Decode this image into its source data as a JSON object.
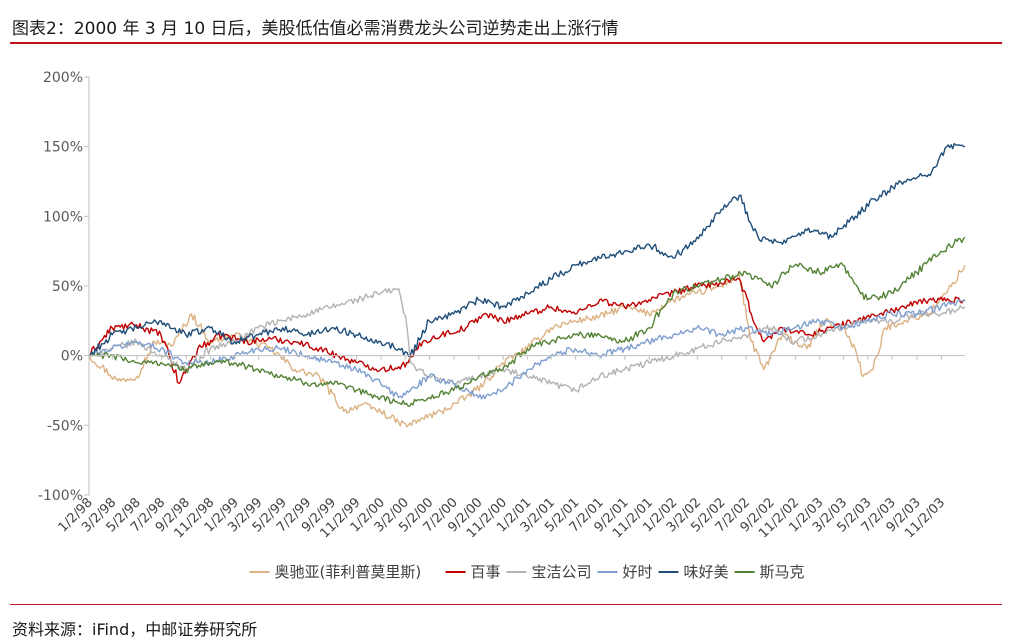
{
  "title": "图表2：2000 年 3 月 10 日后，美股低估值必需消费龙头公司逆势走出上涨行情",
  "source": "资料来源：iFind，中邮证券研究所",
  "chart_data": {
    "type": "line",
    "title": "",
    "xlabel": "",
    "ylabel": "",
    "ylim": [
      -100,
      200
    ],
    "yticks": [
      -100,
      -50,
      0,
      50,
      100,
      150,
      200
    ],
    "ytick_labels": [
      "-100%",
      "-50%",
      "0%",
      "50%",
      "100%",
      "150%",
      "200%"
    ],
    "xlim": [
      "1998-01-02",
      "2003-12-31"
    ],
    "xtick_labels": [
      "1/2/98",
      "3/2/98",
      "5/2/98",
      "7/2/98",
      "9/2/98",
      "11/2/98",
      "1/2/99",
      "3/2/99",
      "5/2/99",
      "7/2/99",
      "9/2/99",
      "11/2/99",
      "1/2/00",
      "3/2/00",
      "5/2/00",
      "7/2/00",
      "9/2/00",
      "11/2/00",
      "1/2/01",
      "3/2/01",
      "5/2/01",
      "7/2/01",
      "9/2/01",
      "11/2/01",
      "1/2/02",
      "3/2/02",
      "5/2/02",
      "7/2/02",
      "9/2/02",
      "11/2/02",
      "1/2/03",
      "3/2/03",
      "5/2/03",
      "7/2/03",
      "9/2/03",
      "11/2/03"
    ],
    "xticks": [
      "1998-01-02",
      "1998-03-02",
      "1998-05-02",
      "1998-07-02",
      "1998-09-02",
      "1998-11-02",
      "1999-01-02",
      "1999-03-02",
      "1999-05-02",
      "1999-07-02",
      "1999-09-02",
      "1999-11-02",
      "2000-01-02",
      "2000-03-02",
      "2000-05-02",
      "2000-07-02",
      "2000-09-02",
      "2000-11-02",
      "2001-01-02",
      "2001-03-02",
      "2001-05-02",
      "2001-07-02",
      "2001-09-02",
      "2001-11-02",
      "2002-01-02",
      "2002-03-02",
      "2002-05-02",
      "2002-07-02",
      "2002-09-02",
      "2002-11-02",
      "2003-01-02",
      "2003-03-02",
      "2003-05-02",
      "2003-07-02",
      "2003-09-02",
      "2003-11-02"
    ],
    "grid": false,
    "legend_position": "bottom",
    "series": [
      {
        "name": "奥驰亚(菲利普莫里斯)",
        "color": "#dcb283",
        "x": [
          "1998-01-02",
          "1998-03-15",
          "1998-05-01",
          "1998-06-15",
          "1998-08-01",
          "1998-09-15",
          "1998-11-01",
          "1999-01-01",
          "1999-02-15",
          "1999-04-01",
          "1999-06-01",
          "1999-08-01",
          "1999-10-01",
          "1999-11-15",
          "2000-01-01",
          "2000-02-15",
          "2000-03-10",
          "2000-04-15",
          "2000-06-01",
          "2000-08-01",
          "2000-09-15",
          "2000-11-01",
          "2001-01-01",
          "2001-03-01",
          "2001-05-01",
          "2001-07-01",
          "2001-09-01",
          "2001-11-01",
          "2002-01-01",
          "2002-03-01",
          "2002-05-01",
          "2002-06-15",
          "2002-07-15",
          "2002-08-15",
          "2002-10-01",
          "2002-12-01",
          "2003-01-15",
          "2003-03-01",
          "2003-04-01",
          "2003-04-20",
          "2003-05-15",
          "2003-06-15",
          "2003-08-01",
          "2003-10-01",
          "2003-11-15",
          "2003-12-31"
        ],
        "y": [
          0,
          -18,
          -15,
          10,
          8,
          30,
          10,
          15,
          10,
          5,
          -10,
          -15,
          -40,
          -35,
          -40,
          -48,
          -50,
          -45,
          -40,
          -30,
          -20,
          -5,
          5,
          20,
          25,
          28,
          35,
          30,
          40,
          45,
          50,
          58,
          10,
          -10,
          15,
          5,
          25,
          20,
          5,
          -15,
          -10,
          20,
          25,
          30,
          45,
          65
        ]
      },
      {
        "name": "百事",
        "color": "#c00000",
        "x": [
          "1998-01-02",
          "1998-03-01",
          "1998-05-01",
          "1998-07-01",
          "1998-08-15",
          "1998-10-01",
          "1998-12-01",
          "1999-02-01",
          "1999-04-01",
          "1999-06-01",
          "1999-08-01",
          "1999-09-15",
          "1999-11-01",
          "2000-01-01",
          "2000-02-15",
          "2000-03-10",
          "2000-04-15",
          "2000-06-01",
          "2000-08-01",
          "2000-09-15",
          "2000-11-01",
          "2001-01-01",
          "2001-03-01",
          "2001-05-01",
          "2001-07-01",
          "2001-09-01",
          "2001-11-01",
          "2002-01-01",
          "2002-03-01",
          "2002-05-01",
          "2002-06-15",
          "2002-07-15",
          "2002-08-15",
          "2002-10-01",
          "2002-12-01",
          "2003-02-01",
          "2003-04-01",
          "2003-06-01",
          "2003-08-01",
          "2003-10-01",
          "2003-12-31"
        ],
        "y": [
          0,
          20,
          22,
          15,
          -20,
          5,
          15,
          10,
          12,
          10,
          5,
          0,
          -5,
          -10,
          -8,
          -5,
          10,
          15,
          20,
          30,
          25,
          30,
          35,
          30,
          40,
          35,
          40,
          45,
          50,
          52,
          55,
          30,
          10,
          20,
          15,
          20,
          25,
          30,
          35,
          40,
          40
        ]
      },
      {
        "name": "宝洁公司",
        "color": "#b3b3b3",
        "x": [
          "1998-01-02",
          "1998-03-01",
          "1998-05-01",
          "1998-07-01",
          "1998-09-01",
          "1998-11-01",
          "1999-01-01",
          "1999-03-01",
          "1999-05-01",
          "1999-07-01",
          "1999-09-01",
          "1999-11-01",
          "2000-01-01",
          "2000-02-15",
          "2000-03-07",
          "2000-03-15",
          "2000-05-01",
          "2000-07-01",
          "2000-09-01",
          "2000-11-01",
          "2001-01-01",
          "2001-03-01",
          "2001-05-01",
          "2001-07-01",
          "2001-09-01",
          "2001-11-01",
          "2002-01-01",
          "2002-03-01",
          "2002-05-01",
          "2002-07-01",
          "2002-09-01",
          "2002-11-01",
          "2003-01-01",
          "2003-03-01",
          "2003-05-01",
          "2003-07-01",
          "2003-09-01",
          "2003-11-01",
          "2003-12-31"
        ],
        "y": [
          0,
          5,
          10,
          0,
          -10,
          5,
          10,
          20,
          25,
          30,
          35,
          40,
          45,
          48,
          20,
          -5,
          -15,
          -20,
          -15,
          -10,
          -15,
          -20,
          -25,
          -15,
          -10,
          -5,
          0,
          5,
          10,
          15,
          20,
          10,
          15,
          20,
          25,
          25,
          30,
          30,
          35
        ]
      },
      {
        "name": "好时",
        "color": "#7f9fd0",
        "x": [
          "1998-01-02",
          "1998-03-01",
          "1998-05-01",
          "1998-07-01",
          "1998-09-01",
          "1998-11-01",
          "1999-01-01",
          "1999-03-01",
          "1999-05-01",
          "1999-07-01",
          "1999-09-01",
          "1999-11-01",
          "2000-01-01",
          "2000-02-15",
          "2000-03-15",
          "2000-05-01",
          "2000-07-01",
          "2000-09-01",
          "2000-11-01",
          "2001-01-01",
          "2001-03-01",
          "2001-05-01",
          "2001-07-01",
          "2001-09-01",
          "2001-11-01",
          "2002-01-01",
          "2002-03-01",
          "2002-05-01",
          "2002-07-01",
          "2002-09-01",
          "2002-11-01",
          "2003-01-01",
          "2003-03-01",
          "2003-05-01",
          "2003-07-01",
          "2003-09-01",
          "2003-11-01",
          "2003-12-31"
        ],
        "y": [
          0,
          5,
          10,
          5,
          -5,
          -5,
          0,
          5,
          5,
          0,
          -5,
          -10,
          -20,
          -30,
          -25,
          -15,
          -20,
          -30,
          -25,
          -10,
          0,
          5,
          0,
          5,
          10,
          15,
          20,
          15,
          20,
          15,
          20,
          25,
          20,
          25,
          30,
          30,
          35,
          40
        ]
      },
      {
        "name": "味好美",
        "color": "#1f4e79",
        "x": [
          "1998-01-02",
          "1998-03-01",
          "1998-05-01",
          "1998-07-01",
          "1998-09-01",
          "1998-11-01",
          "1999-01-01",
          "1999-03-01",
          "1999-05-01",
          "1999-07-01",
          "1999-09-01",
          "1999-11-01",
          "2000-01-01",
          "2000-02-15",
          "2000-03-15",
          "2000-05-01",
          "2000-07-01",
          "2000-09-01",
          "2000-11-01",
          "2001-01-01",
          "2001-03-01",
          "2001-05-01",
          "2001-07-01",
          "2001-09-01",
          "2001-11-01",
          "2002-01-01",
          "2002-03-01",
          "2002-05-01",
          "2002-06-15",
          "2002-08-01",
          "2002-10-01",
          "2002-12-01",
          "2003-02-01",
          "2003-04-01",
          "2003-06-01",
          "2003-08-01",
          "2003-10-01",
          "2003-11-15",
          "2003-12-31"
        ],
        "y": [
          0,
          15,
          20,
          25,
          15,
          20,
          10,
          15,
          20,
          15,
          20,
          15,
          10,
          5,
          0,
          25,
          30,
          40,
          35,
          45,
          55,
          65,
          70,
          75,
          80,
          70,
          85,
          105,
          115,
          85,
          80,
          90,
          85,
          100,
          115,
          125,
          130,
          150,
          150
        ]
      },
      {
        "name": "斯马克",
        "color": "#548235",
        "x": [
          "1998-01-02",
          "1998-03-01",
          "1998-05-01",
          "1998-07-01",
          "1998-09-01",
          "1998-11-01",
          "1999-01-01",
          "1999-03-01",
          "1999-05-01",
          "1999-07-01",
          "1999-09-01",
          "1999-11-01",
          "2000-01-01",
          "2000-03-01",
          "2000-05-01",
          "2000-07-01",
          "2000-09-01",
          "2000-11-01",
          "2001-01-01",
          "2001-03-01",
          "2001-05-01",
          "2001-07-01",
          "2001-09-01",
          "2001-11-01",
          "2002-01-01",
          "2002-03-01",
          "2002-05-01",
          "2002-07-01",
          "2002-09-01",
          "2002-11-01",
          "2003-01-01",
          "2003-03-01",
          "2003-05-01",
          "2003-07-01",
          "2003-09-01",
          "2003-11-01",
          "2003-12-31"
        ],
        "y": [
          0,
          0,
          -5,
          -5,
          -10,
          -5,
          -5,
          -10,
          -15,
          -20,
          -20,
          -25,
          -30,
          -35,
          -30,
          -25,
          -15,
          -10,
          5,
          10,
          15,
          15,
          10,
          20,
          45,
          50,
          55,
          60,
          50,
          65,
          60,
          65,
          40,
          45,
          60,
          75,
          85
        ]
      }
    ]
  }
}
